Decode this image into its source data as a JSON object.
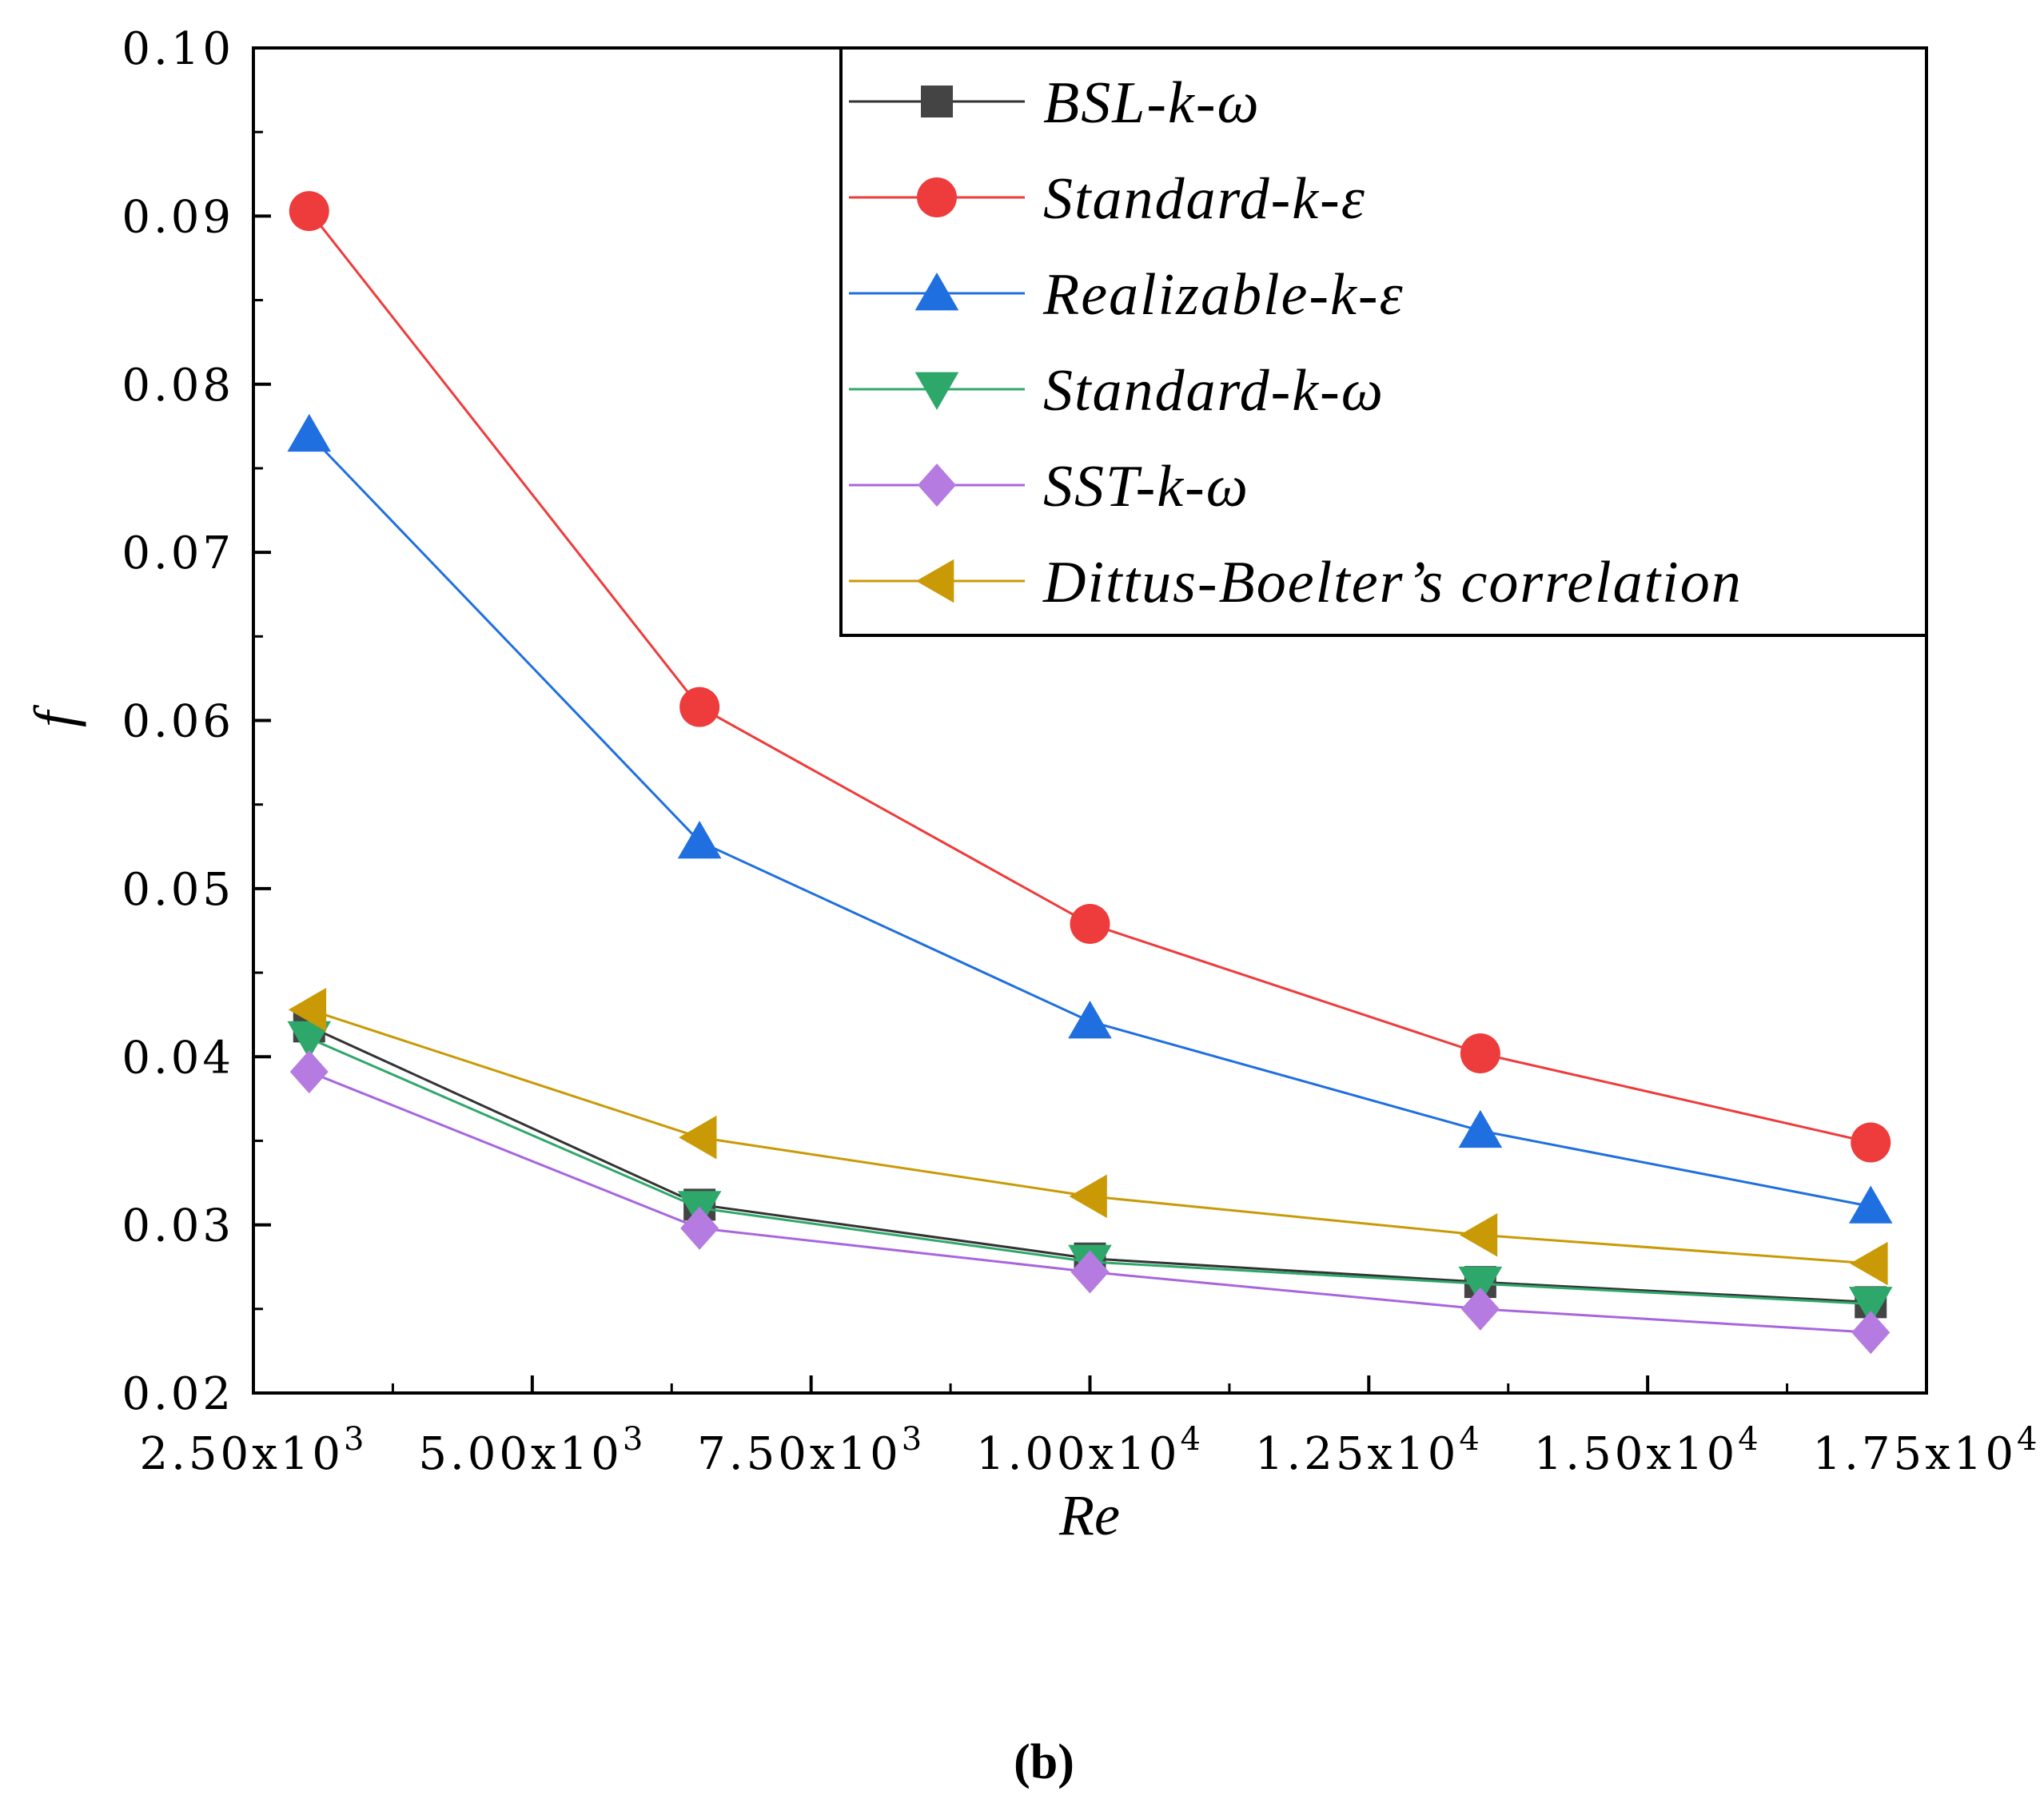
{
  "chart_data": {
    "type": "line",
    "title": "",
    "xlabel": "Re",
    "ylabel": "f",
    "xlim": [
      2500,
      17500
    ],
    "ylim": [
      0.02,
      0.1
    ],
    "x_ticks": [
      {
        "value": 2500,
        "mantissa": "2.50x10",
        "exp": "3"
      },
      {
        "value": 5000,
        "mantissa": "5.00x10",
        "exp": "3"
      },
      {
        "value": 7500,
        "mantissa": "7.50x10",
        "exp": "3"
      },
      {
        "value": 10000,
        "mantissa": "1.00x10",
        "exp": "4"
      },
      {
        "value": 12500,
        "mantissa": "1.25x10",
        "exp": "4"
      },
      {
        "value": 15000,
        "mantissa": "1.50x10",
        "exp": "4"
      },
      {
        "value": 17500,
        "mantissa": "1.75x10",
        "exp": "4"
      }
    ],
    "y_ticks": [
      {
        "value": 0.02,
        "label": "0.02"
      },
      {
        "value": 0.03,
        "label": "0.03"
      },
      {
        "value": 0.04,
        "label": "0.04"
      },
      {
        "value": 0.05,
        "label": "0.05"
      },
      {
        "value": 0.06,
        "label": "0.06"
      },
      {
        "value": 0.07,
        "label": "0.07"
      },
      {
        "value": 0.08,
        "label": "0.08"
      },
      {
        "value": 0.09,
        "label": "0.09"
      },
      {
        "value": 0.1,
        "label": "0.10"
      }
    ],
    "x": [
      3000,
      6500,
      10000,
      13500,
      17000
    ],
    "series": [
      {
        "name": "BSL-k-ω",
        "color": "#444444",
        "line_color": "#333333",
        "marker": "square",
        "values": [
          0.0418,
          0.0312,
          0.028,
          0.0266,
          0.0254
        ]
      },
      {
        "name": "Standard-k-ε",
        "color": "#ee3b3b",
        "line_color": "#ee3b3b",
        "marker": "circle",
        "values": [
          0.0903,
          0.0608,
          0.0479,
          0.0402,
          0.0349
        ]
      },
      {
        "name": "Realizable-k-ε",
        "color": "#1f6fe0",
        "line_color": "#1f6fe0",
        "marker": "triangle-up",
        "values": [
          0.077,
          0.0528,
          0.0421,
          0.0356,
          0.0311
        ]
      },
      {
        "name": "Standard-k-ω",
        "color": "#2ea86a",
        "line_color": "#2ea86a",
        "marker": "triangle-down",
        "values": [
          0.0411,
          0.031,
          0.0278,
          0.0265,
          0.0253
        ]
      },
      {
        "name": "SST-k-ω",
        "color": "#b57be0",
        "line_color": "#a866dd",
        "marker": "diamond",
        "values": [
          0.0391,
          0.0298,
          0.0272,
          0.025,
          0.0236
        ]
      },
      {
        "name": "Dittus-Boelter’s correlation",
        "color": "#c99a06",
        "line_color": "#c99a06",
        "marker": "triangle-left",
        "values": [
          0.0428,
          0.0352,
          0.0317,
          0.0294,
          0.0277
        ]
      }
    ],
    "legend_position": "top-right",
    "grid": false
  },
  "panel_label": "(b)"
}
